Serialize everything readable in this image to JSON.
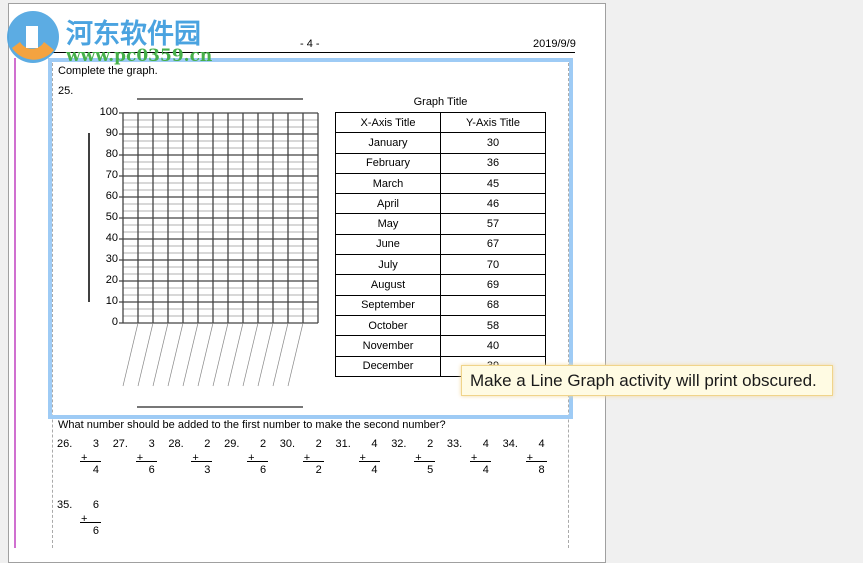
{
  "watermark": {
    "title": "河东软件园",
    "url": "www.pc0359.cn"
  },
  "header": {
    "page_number": "- 4 -",
    "date": "2019/9/9"
  },
  "activity": {
    "instruction": "Complete the graph.",
    "number": "25.",
    "y_ticks": [
      "100",
      "90",
      "80",
      "70",
      "60",
      "50",
      "40",
      "30",
      "20",
      "10",
      "0"
    ],
    "table": {
      "title": "Graph Title",
      "columns": [
        "X-Axis Title",
        "Y-Axis Title"
      ],
      "rows": [
        [
          "January",
          "30"
        ],
        [
          "February",
          "36"
        ],
        [
          "March",
          "45"
        ],
        [
          "April",
          "46"
        ],
        [
          "May",
          "57"
        ],
        [
          "June",
          "67"
        ],
        [
          "July",
          "70"
        ],
        [
          "August",
          "69"
        ],
        [
          "September",
          "68"
        ],
        [
          "October",
          "58"
        ],
        [
          "November",
          "40"
        ],
        [
          "December",
          "39"
        ]
      ]
    }
  },
  "tooltip": "Make a Line Graph activity will print obscured.",
  "addition": {
    "instruction": "What number should be added to the first number to make the second number?",
    "problems": [
      {
        "n": "26.",
        "a": "3",
        "b": "4"
      },
      {
        "n": "27.",
        "a": "3",
        "b": "6"
      },
      {
        "n": "28.",
        "a": "2",
        "b": "3"
      },
      {
        "n": "29.",
        "a": "2",
        "b": "6"
      },
      {
        "n": "30.",
        "a": "2",
        "b": "2"
      },
      {
        "n": "31.",
        "a": "4",
        "b": "4"
      },
      {
        "n": "32.",
        "a": "2",
        "b": "5"
      },
      {
        "n": "33.",
        "a": "4",
        "b": "4"
      },
      {
        "n": "34.",
        "a": "4",
        "b": "8"
      },
      {
        "n": "35.",
        "a": "6",
        "b": "6"
      }
    ],
    "operator": "+"
  }
}
